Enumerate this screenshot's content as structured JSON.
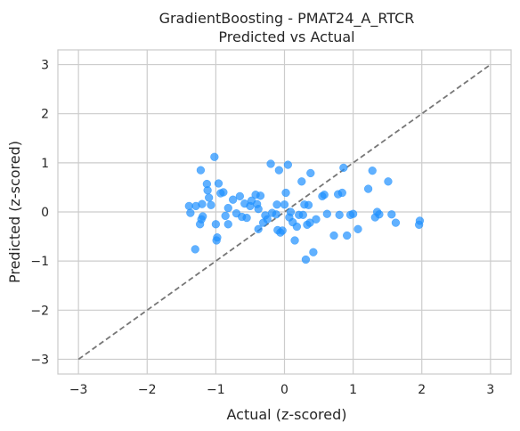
{
  "chart_data": {
    "type": "scatter",
    "title": "GradientBoosting - PMAT24_A_RTCR",
    "subtitle": "Predicted vs Actual",
    "xlabel": "Actual (z-scored)",
    "ylabel": "Predicted (z-scored)",
    "xlim": [
      -3.3,
      3.3
    ],
    "ylim": [
      -3.3,
      3.3
    ],
    "xticks": [
      "−3",
      "−2",
      "−1",
      "0",
      "1",
      "2",
      "3"
    ],
    "yticks": [
      "−3",
      "−2",
      "−1",
      "0",
      "1",
      "2",
      "3"
    ],
    "xtick_values": [
      -3,
      -2,
      -1,
      0,
      1,
      2,
      3
    ],
    "ytick_values": [
      -3,
      -2,
      -1,
      0,
      1,
      2,
      3
    ],
    "grid": true,
    "reference_line": {
      "from": [
        -3,
        -3
      ],
      "to": [
        3,
        3
      ],
      "style": "dashed",
      "color": "#777777"
    },
    "point_color": "#1e90ff",
    "points": [
      [
        -1.39,
        0.12
      ],
      [
        -1.37,
        -0.02
      ],
      [
        -1.29,
        0.12
      ],
      [
        -1.3,
        -0.76
      ],
      [
        -1.22,
        0.85
      ],
      [
        -1.2,
        0.16
      ],
      [
        -1.21,
        -0.15
      ],
      [
        -1.23,
        -0.25
      ],
      [
        -1.19,
        -0.09
      ],
      [
        -1.13,
        0.57
      ],
      [
        -1.12,
        0.44
      ],
      [
        -1.1,
        0.29
      ],
      [
        -1.07,
        0.14
      ],
      [
        -1.02,
        1.12
      ],
      [
        -1.0,
        -0.25
      ],
      [
        -0.98,
        -0.52
      ],
      [
        -0.96,
        0.58
      ],
      [
        -0.99,
        -0.58
      ],
      [
        -0.93,
        0.38
      ],
      [
        -0.89,
        0.4
      ],
      [
        -0.86,
        -0.08
      ],
      [
        -0.82,
        -0.25
      ],
      [
        -0.82,
        0.08
      ],
      [
        -0.75,
        0.25
      ],
      [
        -0.7,
        -0.03
      ],
      [
        -0.65,
        0.32
      ],
      [
        -0.62,
        -0.1
      ],
      [
        -0.58,
        0.17
      ],
      [
        -0.55,
        -0.12
      ],
      [
        -0.5,
        0.12
      ],
      [
        -0.48,
        0.23
      ],
      [
        -0.42,
        0.35
      ],
      [
        -0.4,
        0.16
      ],
      [
        -0.38,
        0.06
      ],
      [
        -0.35,
        0.33
      ],
      [
        -0.38,
        -0.35
      ],
      [
        -0.31,
        -0.22
      ],
      [
        -0.28,
        -0.07
      ],
      [
        -0.25,
        -0.15
      ],
      [
        -0.2,
        0.98
      ],
      [
        -0.18,
        -0.02
      ],
      [
        -0.12,
        -0.05
      ],
      [
        -0.11,
        0.15
      ],
      [
        -0.08,
        0.85
      ],
      [
        -0.1,
        -0.37
      ],
      [
        -0.06,
        -0.42
      ],
      [
        -0.03,
        -0.38
      ],
      [
        0.0,
        0.15
      ],
      [
        0.02,
        0.39
      ],
      [
        0.05,
        0.96
      ],
      [
        0.07,
        -0.11
      ],
      [
        0.09,
        0.0
      ],
      [
        0.12,
        -0.21
      ],
      [
        0.15,
        -0.58
      ],
      [
        0.18,
        -0.3
      ],
      [
        0.21,
        -0.06
      ],
      [
        0.25,
        0.62
      ],
      [
        0.27,
        -0.06
      ],
      [
        0.29,
        0.15
      ],
      [
        0.31,
        -0.97
      ],
      [
        0.33,
        -0.26
      ],
      [
        0.35,
        0.14
      ],
      [
        0.37,
        -0.22
      ],
      [
        0.38,
        0.79
      ],
      [
        0.42,
        -0.82
      ],
      [
        0.46,
        -0.15
      ],
      [
        0.55,
        0.32
      ],
      [
        0.58,
        0.35
      ],
      [
        0.62,
        -0.04
      ],
      [
        0.72,
        -0.48
      ],
      [
        0.78,
        0.36
      ],
      [
        0.8,
        -0.06
      ],
      [
        0.84,
        0.39
      ],
      [
        0.86,
        0.9
      ],
      [
        0.91,
        -0.48
      ],
      [
        0.96,
        -0.06
      ],
      [
        1.0,
        -0.04
      ],
      [
        1.07,
        -0.35
      ],
      [
        1.22,
        0.47
      ],
      [
        1.28,
        0.84
      ],
      [
        1.32,
        -0.11
      ],
      [
        1.35,
        0.0
      ],
      [
        1.38,
        -0.05
      ],
      [
        1.51,
        0.62
      ],
      [
        1.56,
        -0.05
      ],
      [
        1.62,
        -0.22
      ],
      [
        1.96,
        -0.26
      ],
      [
        1.97,
        -0.18
      ]
    ]
  }
}
